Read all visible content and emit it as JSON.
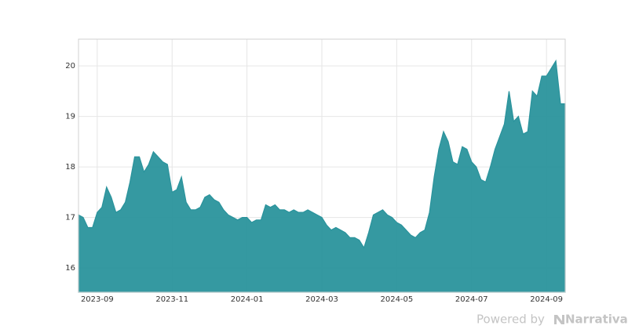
{
  "chart_data": {
    "type": "area",
    "categories": [
      null,
      null,
      null,
      null,
      "2023-09",
      null,
      null,
      null,
      null,
      null,
      null,
      null,
      null,
      null,
      null,
      null,
      null,
      null,
      null,
      null,
      "2023-11",
      null,
      null,
      null,
      null,
      null,
      null,
      null,
      null,
      null,
      null,
      null,
      null,
      null,
      null,
      null,
      "2024-01",
      null,
      null,
      null,
      null,
      null,
      null,
      null,
      null,
      null,
      null,
      null,
      null,
      null,
      null,
      null,
      "2024-03",
      null,
      null,
      null,
      null,
      null,
      null,
      null,
      null,
      null,
      null,
      null,
      null,
      null,
      null,
      null,
      "2024-05",
      null,
      null,
      null,
      null,
      null,
      null,
      null,
      null,
      null,
      null,
      null,
      null,
      null,
      null,
      null,
      "2024-07",
      null,
      null,
      null,
      null,
      null,
      null,
      null,
      null,
      null,
      null,
      null,
      null,
      null,
      null,
      null,
      "2024-09",
      null,
      null,
      null,
      null
    ],
    "values": [
      17.05,
      17.0,
      16.8,
      16.8,
      17.1,
      17.2,
      17.6,
      17.4,
      17.1,
      17.15,
      17.3,
      17.7,
      18.2,
      18.2,
      17.9,
      18.05,
      18.3,
      18.2,
      18.1,
      18.05,
      17.5,
      17.55,
      17.8,
      17.3,
      17.15,
      17.15,
      17.2,
      17.4,
      17.45,
      17.35,
      17.3,
      17.15,
      17.05,
      17.0,
      16.95,
      17.0,
      17.0,
      16.9,
      16.95,
      16.95,
      17.25,
      17.2,
      17.25,
      17.15,
      17.15,
      17.1,
      17.15,
      17.1,
      17.1,
      17.15,
      17.1,
      17.05,
      17.0,
      16.85,
      16.75,
      16.8,
      16.75,
      16.7,
      16.6,
      16.6,
      16.55,
      16.4,
      16.7,
      17.05,
      17.1,
      17.15,
      17.05,
      17.0,
      16.9,
      16.85,
      16.75,
      16.65,
      16.6,
      16.7,
      16.75,
      17.1,
      17.8,
      18.35,
      18.7,
      18.5,
      18.1,
      18.05,
      18.4,
      18.35,
      18.1,
      18.0,
      17.75,
      17.7,
      18.0,
      18.35,
      18.6,
      18.85,
      19.5,
      18.9,
      19.0,
      18.65,
      18.7,
      19.5,
      19.4,
      19.8,
      19.8,
      19.95,
      20.1,
      19.25,
      19.25
    ],
    "color": "#2a939c",
    "ylim": [
      15.52,
      20.53
    ],
    "yticks": [
      16,
      17,
      18,
      19,
      20
    ],
    "grid": true
  },
  "watermark": {
    "prefix": "Powered by",
    "brand": "Narrativa"
  }
}
